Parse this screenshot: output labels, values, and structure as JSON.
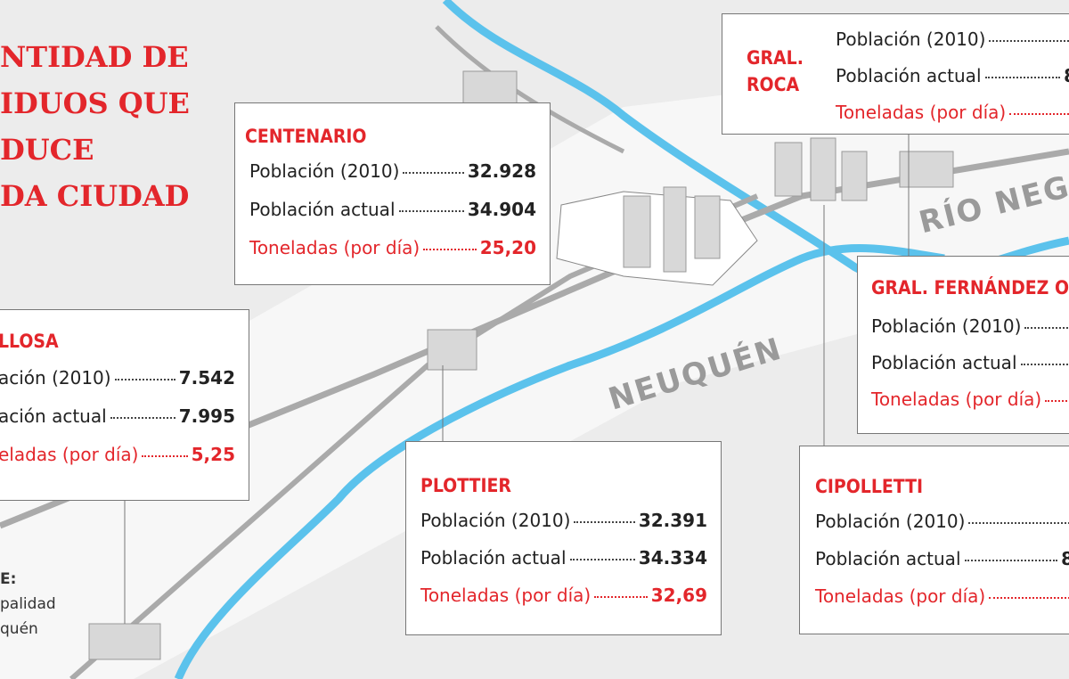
{
  "title": {
    "lines": [
      "NTIDAD DE",
      "IDUOS QUE",
      "DUCE",
      "DA CIUDAD"
    ]
  },
  "source": {
    "lines": [
      "E:",
      "palidad",
      "quén"
    ]
  },
  "map_labels": [
    "NEUQUÉN",
    "RÍO NEG"
  ],
  "cities": [
    {
      "name": "CENTENARIO",
      "rows": [
        {
          "label": "Población (2010)",
          "value": "32.928"
        },
        {
          "label": "Población actual",
          "value": "34.904"
        },
        {
          "label": "Toneladas (por día)",
          "value": "25,20"
        }
      ]
    },
    {
      "name": "LLOSA",
      "rows": [
        {
          "label": "ación (2010)",
          "value": "7.542"
        },
        {
          "label": "ación actual",
          "value": "7.995"
        },
        {
          "label": "eladas (por día)",
          "value": "5,25"
        }
      ]
    },
    {
      "name": "PLOTTIER",
      "rows": [
        {
          "label": "Población (2010)",
          "value": "32.391"
        },
        {
          "label": "Población actual",
          "value": "34.334"
        },
        {
          "label": "Toneladas (por día)",
          "value": "32,69"
        }
      ]
    },
    {
      "name": "GRAL. ROCA",
      "rows": [
        {
          "label": "Población (2010)"
        },
        {
          "label": "Población actual",
          "value": "8"
        },
        {
          "label": "Toneladas (por día)"
        }
      ]
    },
    {
      "name": "GRAL. FERNÁNDEZ O",
      "rows": [
        {
          "label": "Población (2010)"
        },
        {
          "label": "Población actual"
        },
        {
          "label": "Toneladas (por día)"
        }
      ]
    },
    {
      "name": "CIPOLLETTI",
      "rows": [
        {
          "label": "Población (2010)"
        },
        {
          "label": "Población actual",
          "value": "8"
        },
        {
          "label": "Toneladas (por día)"
        }
      ]
    }
  ]
}
